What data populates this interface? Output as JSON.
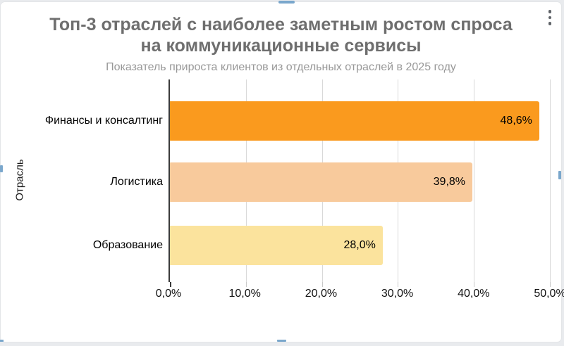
{
  "window": {
    "background_color": "#E9EBEE",
    "card_color": "#FFFFFF",
    "selection_handle_color": "#7AA7CC"
  },
  "icons": {
    "chart_options": "kebab-menu-icon"
  },
  "chart_data": {
    "type": "bar",
    "orientation": "horizontal",
    "title": "Топ-3 отраслей с наиболее заметным ростом спроса на коммуникационные сервисы",
    "title_line1": "Топ-3 отраслей с наиболее заметным ростом спроса",
    "title_line2": "на коммуникационные сервисы",
    "subtitle": "Показатель прироста клиентов из отдельных отраслей в 2025 году",
    "categories": [
      "Финансы и консалтинг",
      "Логистика",
      "Образование"
    ],
    "values": [
      48.6,
      39.8,
      28.0
    ],
    "value_labels": [
      "48,6%",
      "39,8%",
      "28,0%"
    ],
    "bar_colors": [
      "#FA9A1E",
      "#F8CA9C",
      "#FBE39D"
    ],
    "ylabel": "Отрасль",
    "xlabel": "",
    "xlim": [
      0,
      50
    ],
    "x_tick_step": 10,
    "x_ticks": [
      "0,0%",
      "10,0%",
      "20,0%",
      "30,0%",
      "40,0%",
      "50,0%"
    ],
    "grid": "vertical",
    "legend": "none"
  }
}
